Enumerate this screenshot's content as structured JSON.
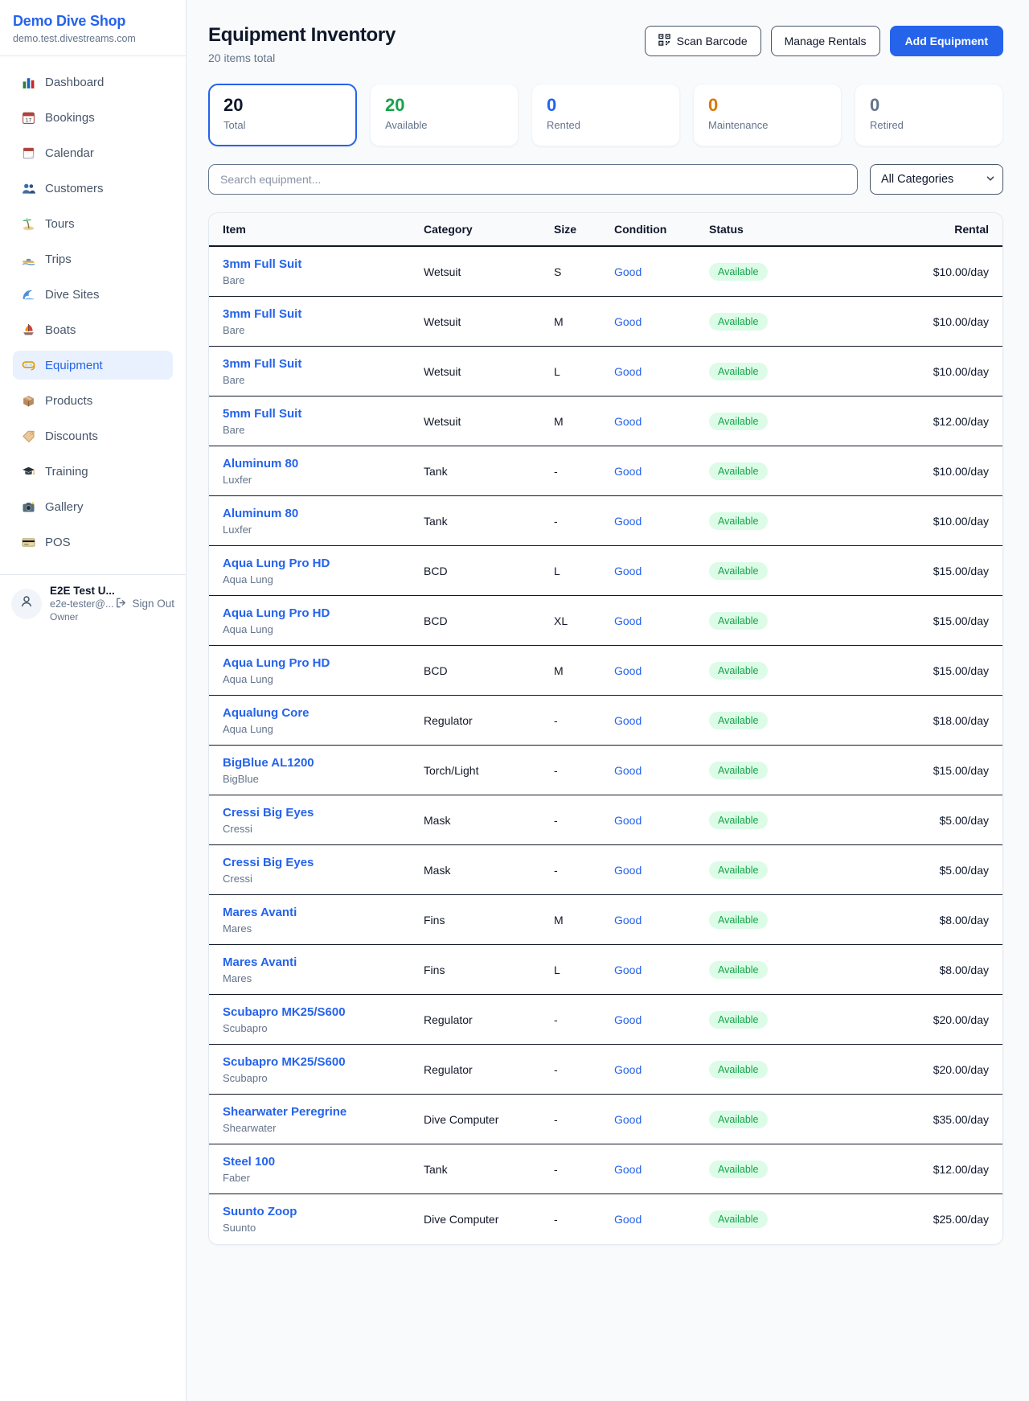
{
  "brand": {
    "name": "Demo Dive Shop",
    "domain": "demo.test.divestreams.com"
  },
  "sidebar": {
    "items": [
      {
        "label": "Dashboard",
        "icon": "bar-chart-icon",
        "active": false
      },
      {
        "label": "Bookings",
        "icon": "calendar-icon",
        "active": false
      },
      {
        "label": "Calendar",
        "icon": "tearoff-calendar-icon",
        "active": false
      },
      {
        "label": "Customers",
        "icon": "people-icon",
        "active": false
      },
      {
        "label": "Tours",
        "icon": "island-icon",
        "active": false
      },
      {
        "label": "Trips",
        "icon": "speedboat-icon",
        "active": false
      },
      {
        "label": "Dive Sites",
        "icon": "wave-icon",
        "active": false
      },
      {
        "label": "Boats",
        "icon": "sailboat-icon",
        "active": false
      },
      {
        "label": "Equipment",
        "icon": "dive-mask-icon",
        "active": true
      },
      {
        "label": "Products",
        "icon": "package-icon",
        "active": false
      },
      {
        "label": "Discounts",
        "icon": "tag-icon",
        "active": false
      },
      {
        "label": "Training",
        "icon": "graduation-cap-icon",
        "active": false
      },
      {
        "label": "Gallery",
        "icon": "camera-icon",
        "active": false
      },
      {
        "label": "POS",
        "icon": "credit-card-icon",
        "active": false
      }
    ]
  },
  "user": {
    "name": "E2E Test U...",
    "email": "e2e-tester@...",
    "role": "Owner",
    "sign_out_label": "Sign Out"
  },
  "header": {
    "title": "Equipment Inventory",
    "subtitle": "20 items total",
    "buttons": {
      "scan": "Scan Barcode",
      "manage": "Manage Rentals",
      "add": "Add Equipment"
    }
  },
  "stats": [
    {
      "key": "total",
      "value": "20",
      "label": "Total",
      "color": "#0f172a",
      "selected": true
    },
    {
      "key": "available",
      "value": "20",
      "label": "Available",
      "color": "#16a34a",
      "selected": false
    },
    {
      "key": "rented",
      "value": "0",
      "label": "Rented",
      "color": "#2563eb",
      "selected": false
    },
    {
      "key": "maintenance",
      "value": "0",
      "label": "Maintenance",
      "color": "#d97706",
      "selected": false
    },
    {
      "key": "retired",
      "value": "0",
      "label": "Retired",
      "color": "#64748b",
      "selected": false
    }
  ],
  "filters": {
    "search_placeholder": "Search equipment...",
    "category": "All Categories"
  },
  "colors": {
    "accent": "#2563eb",
    "status_available_bg": "#dcfce7",
    "status_available_text": "#16a34a",
    "condition_good": "#2563eb"
  },
  "table": {
    "columns": [
      "Item",
      "Category",
      "Size",
      "Condition",
      "Status",
      "Rental"
    ],
    "rows": [
      {
        "name": "3mm Full Suit",
        "brand": "Bare",
        "category": "Wetsuit",
        "size": "S",
        "condition": "Good",
        "status": "Available",
        "rental": "$10.00/day"
      },
      {
        "name": "3mm Full Suit",
        "brand": "Bare",
        "category": "Wetsuit",
        "size": "M",
        "condition": "Good",
        "status": "Available",
        "rental": "$10.00/day"
      },
      {
        "name": "3mm Full Suit",
        "brand": "Bare",
        "category": "Wetsuit",
        "size": "L",
        "condition": "Good",
        "status": "Available",
        "rental": "$10.00/day"
      },
      {
        "name": "5mm Full Suit",
        "brand": "Bare",
        "category": "Wetsuit",
        "size": "M",
        "condition": "Good",
        "status": "Available",
        "rental": "$12.00/day"
      },
      {
        "name": "Aluminum 80",
        "brand": "Luxfer",
        "category": "Tank",
        "size": "-",
        "condition": "Good",
        "status": "Available",
        "rental": "$10.00/day"
      },
      {
        "name": "Aluminum 80",
        "brand": "Luxfer",
        "category": "Tank",
        "size": "-",
        "condition": "Good",
        "status": "Available",
        "rental": "$10.00/day"
      },
      {
        "name": "Aqua Lung Pro HD",
        "brand": "Aqua Lung",
        "category": "BCD",
        "size": "L",
        "condition": "Good",
        "status": "Available",
        "rental": "$15.00/day"
      },
      {
        "name": "Aqua Lung Pro HD",
        "brand": "Aqua Lung",
        "category": "BCD",
        "size": "XL",
        "condition": "Good",
        "status": "Available",
        "rental": "$15.00/day"
      },
      {
        "name": "Aqua Lung Pro HD",
        "brand": "Aqua Lung",
        "category": "BCD",
        "size": "M",
        "condition": "Good",
        "status": "Available",
        "rental": "$15.00/day"
      },
      {
        "name": "Aqualung Core",
        "brand": "Aqua Lung",
        "category": "Regulator",
        "size": "-",
        "condition": "Good",
        "status": "Available",
        "rental": "$18.00/day"
      },
      {
        "name": "BigBlue AL1200",
        "brand": "BigBlue",
        "category": "Torch/Light",
        "size": "-",
        "condition": "Good",
        "status": "Available",
        "rental": "$15.00/day"
      },
      {
        "name": "Cressi Big Eyes",
        "brand": "Cressi",
        "category": "Mask",
        "size": "-",
        "condition": "Good",
        "status": "Available",
        "rental": "$5.00/day"
      },
      {
        "name": "Cressi Big Eyes",
        "brand": "Cressi",
        "category": "Mask",
        "size": "-",
        "condition": "Good",
        "status": "Available",
        "rental": "$5.00/day"
      },
      {
        "name": "Mares Avanti",
        "brand": "Mares",
        "category": "Fins",
        "size": "M",
        "condition": "Good",
        "status": "Available",
        "rental": "$8.00/day"
      },
      {
        "name": "Mares Avanti",
        "brand": "Mares",
        "category": "Fins",
        "size": "L",
        "condition": "Good",
        "status": "Available",
        "rental": "$8.00/day"
      },
      {
        "name": "Scubapro MK25/S600",
        "brand": "Scubapro",
        "category": "Regulator",
        "size": "-",
        "condition": "Good",
        "status": "Available",
        "rental": "$20.00/day"
      },
      {
        "name": "Scubapro MK25/S600",
        "brand": "Scubapro",
        "category": "Regulator",
        "size": "-",
        "condition": "Good",
        "status": "Available",
        "rental": "$20.00/day"
      },
      {
        "name": "Shearwater Peregrine",
        "brand": "Shearwater",
        "category": "Dive Computer",
        "size": "-",
        "condition": "Good",
        "status": "Available",
        "rental": "$35.00/day"
      },
      {
        "name": "Steel 100",
        "brand": "Faber",
        "category": "Tank",
        "size": "-",
        "condition": "Good",
        "status": "Available",
        "rental": "$12.00/day"
      },
      {
        "name": "Suunto Zoop",
        "brand": "Suunto",
        "category": "Dive Computer",
        "size": "-",
        "condition": "Good",
        "status": "Available",
        "rental": "$25.00/day"
      }
    ]
  }
}
